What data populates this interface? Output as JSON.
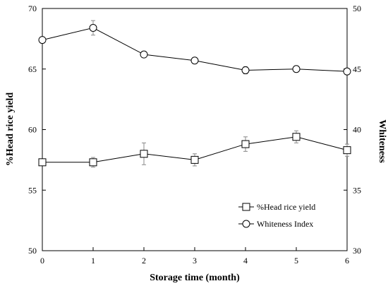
{
  "chart_data": {
    "type": "line",
    "xlabel": "Storage time (month)",
    "ylabel_left": "%Head rice yield",
    "ylabel_right": "Whiteness",
    "x": [
      0,
      1,
      2,
      3,
      4,
      5,
      6
    ],
    "xlim": [
      0,
      6
    ],
    "ylim_left": [
      50,
      70
    ],
    "ylim_right": [
      30,
      50
    ],
    "x_ticks": [
      "0",
      "1",
      "2",
      "3",
      "4",
      "5",
      "6"
    ],
    "y_ticks_left": [
      "50",
      "55",
      "60",
      "65",
      "70"
    ],
    "y_ticks_right": [
      "30",
      "35",
      "40",
      "45",
      "50"
    ],
    "grid": false,
    "legend_position": "lower-right",
    "series": [
      {
        "name": "%Head rice yield",
        "axis": "left",
        "marker": "square",
        "values": [
          57.3,
          57.3,
          58.0,
          57.5,
          58.8,
          59.4,
          58.3
        ],
        "errors": [
          0.0,
          0.4,
          0.9,
          0.5,
          0.6,
          0.5,
          0.5
        ]
      },
      {
        "name": "Whiteness Index",
        "axis": "right",
        "marker": "circle",
        "values": [
          47.4,
          48.4,
          46.2,
          45.7,
          44.9,
          45.0,
          44.8
        ],
        "errors": [
          0.0,
          0.6,
          0.0,
          0.0,
          0.3,
          0.0,
          0.2
        ]
      }
    ],
    "colors": {
      "line": "#000000",
      "background": "#ffffff"
    }
  }
}
